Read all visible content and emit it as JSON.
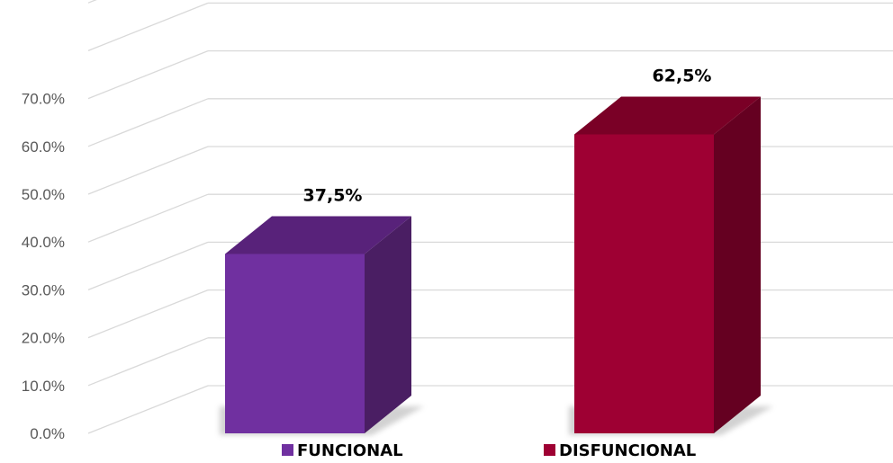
{
  "chart_data": {
    "type": "bar",
    "style": "3d-column",
    "categories": [
      "FUNCIONAL",
      "DISFUNCIONAL"
    ],
    "values": [
      37.5,
      62.5
    ],
    "data_labels": [
      "37,5%",
      "62,5%"
    ],
    "y_ticks": [
      "0.0%",
      "10.0%",
      "20.0%",
      "30.0%",
      "40.0%",
      "50.0%",
      "60.0%",
      "70.0%"
    ],
    "ylim": [
      0,
      90
    ],
    "grid": true,
    "legend": {
      "position": "bottom",
      "entries": [
        {
          "label": "FUNCIONAL",
          "color": "#7030a0"
        },
        {
          "label": "DISFUNCIONAL",
          "color": "#9e0033"
        }
      ]
    },
    "colors": [
      "#7030a0",
      "#9e0033"
    ]
  }
}
